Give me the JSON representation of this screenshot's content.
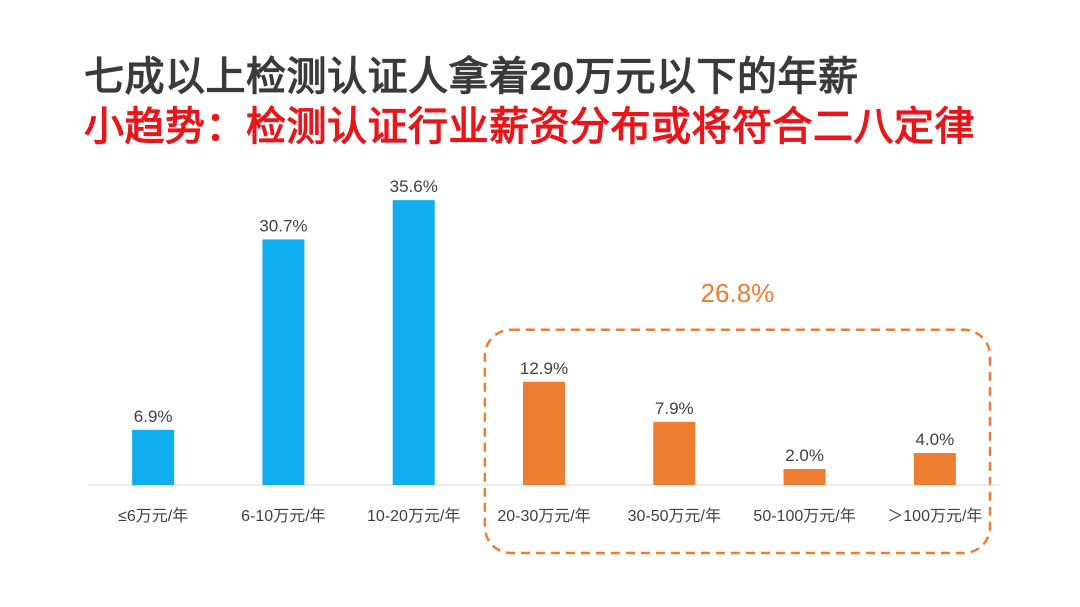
{
  "header": {
    "title": "七成以上检测认证人拿着20万元以下的年薪",
    "subtitle": "小趋势：检测认证行业薪资分布或将符合二八定律"
  },
  "colors": {
    "blue": "#10aeee",
    "orange": "#ed7d31",
    "title": "#3a3a3a",
    "subtitle": "#e8161a"
  },
  "chart_data": {
    "type": "bar",
    "title": "",
    "xlabel": "",
    "ylabel": "",
    "ylim": [
      0,
      40
    ],
    "grid": false,
    "legend": "none",
    "categories": [
      "≤6万元/年",
      "6-10万元/年",
      "10-20万元/年",
      "20-30万元/年",
      "30-50万元/年",
      "50-100万元/年",
      "＞100万元/年"
    ],
    "values": [
      6.9,
      30.7,
      35.6,
      12.9,
      7.9,
      2.0,
      4.0
    ],
    "value_labels": [
      "6.9%",
      "30.7%",
      "35.6%",
      "12.9%",
      "7.9%",
      "2.0%",
      "4.0%"
    ],
    "bar_colors": [
      "#10aeee",
      "#10aeee",
      "#10aeee",
      "#ed7d31",
      "#ed7d31",
      "#ed7d31",
      "#ed7d31"
    ],
    "annotation": {
      "text": "26.8%",
      "group_categories": [
        "20-30万元/年",
        "30-50万元/年",
        "50-100万元/年",
        "＞100万元/年"
      ],
      "style": "dashed-rounded-box",
      "color": "#ed7d31"
    }
  }
}
